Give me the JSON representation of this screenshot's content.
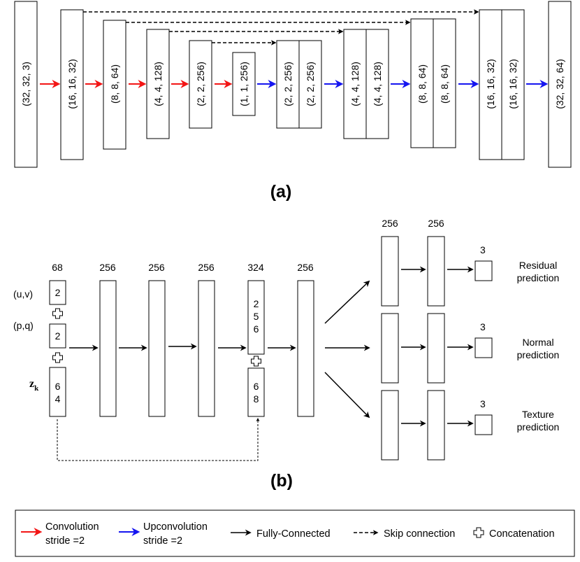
{
  "colors": {
    "conv": "#f31515",
    "upconv": "#1515f0",
    "fc": "#000000",
    "stroke": "#000000"
  },
  "panel_a": {
    "caption": "(a)",
    "blocks": [
      "(32, 32, 3)",
      "(16, 16, 32)",
      "(8, 8, 64)",
      "(4, 4, 128)",
      "(2, 2, 256)",
      "(1, 1, 256)",
      "(2, 2, 256)",
      "(2, 2, 256)",
      "(4, 4, 128)",
      "(4, 4, 128)",
      "(8, 8, 64)",
      "(8, 8, 64)",
      "(16, 16, 32)",
      "(16, 16, 32)",
      "(32, 32, 64)"
    ]
  },
  "panel_b": {
    "caption": "(b)",
    "inputs": {
      "uv": "(u,v)",
      "pq": "(p,q)",
      "z_main": "z",
      "z_sub": "k"
    },
    "input_boxes": {
      "uv": "2",
      "pq": "2",
      "z": [
        "6",
        "4"
      ]
    },
    "skip_boxes": {
      "top": [
        "2",
        "5",
        "6"
      ],
      "bottom": [
        "6",
        "8"
      ]
    },
    "layer_sizes": [
      "68",
      "256",
      "256",
      "256",
      "324",
      "256"
    ],
    "branch_sizes": [
      "256",
      "256"
    ],
    "outputs": [
      {
        "size": "3",
        "label": [
          "Residual",
          "prediction"
        ]
      },
      {
        "size": "3",
        "label": [
          "Normal",
          "prediction"
        ]
      },
      {
        "size": "3",
        "label": [
          "Texture",
          "prediction"
        ]
      }
    ]
  },
  "legend": {
    "conv": [
      "Convolution",
      "stride =2"
    ],
    "upconv": [
      "Upconvolution",
      "stride =2"
    ],
    "fc": "Fully-Connected",
    "skip": "Skip connection",
    "concat": "Concatenation"
  }
}
